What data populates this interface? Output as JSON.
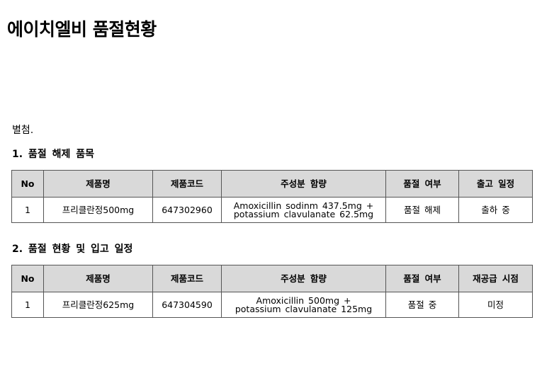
{
  "title": "에이치엘비 품절현황",
  "attachment_label": "별첨.",
  "sections": [
    {
      "heading": "1. 품절 해제 품목",
      "headers": [
        "No",
        "제품명",
        "제품코드",
        "주성분 함량",
        "품절 여부",
        "출고 일정"
      ],
      "rows": [
        {
          "no": "1",
          "name": "프리클란정500mg",
          "code": "647302960",
          "ingredient_line1": "Amoxicillin sodinm 437.5mg +",
          "ingredient_line2": "potassium clavulanate 62.5mg",
          "status": "품절 해제",
          "schedule": "출하 중"
        }
      ]
    },
    {
      "heading": "2. 품절 현황 및 입고 일정",
      "headers": [
        "No",
        "제품명",
        "제품코드",
        "주성분 함량",
        "품절 여부",
        "재공급 시점"
      ],
      "rows": [
        {
          "no": "1",
          "name": "프리클란정625mg",
          "code": "647304590",
          "ingredient_line1": "Amoxicillin 500mg +",
          "ingredient_line2": "potassium clavulanate 125mg",
          "status": "품절 중",
          "schedule": "미정"
        }
      ]
    }
  ]
}
